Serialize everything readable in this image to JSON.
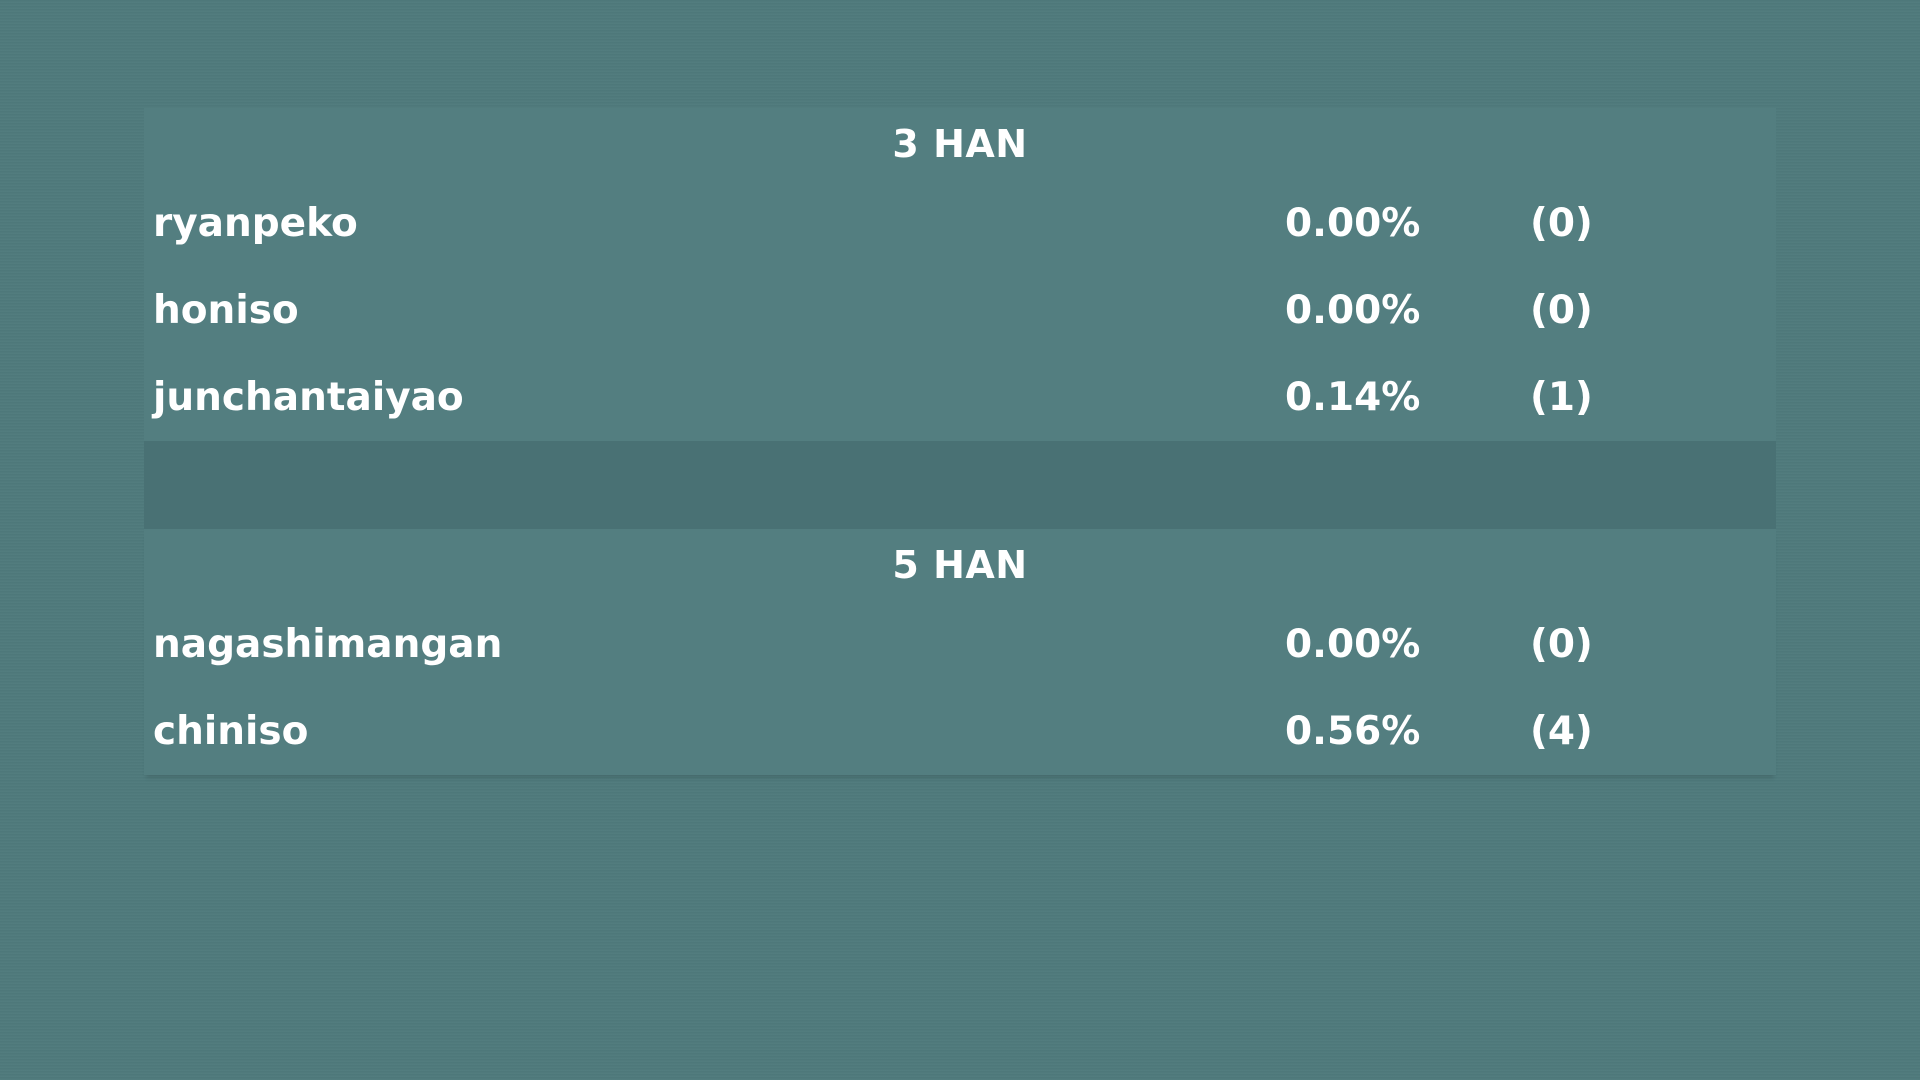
{
  "sections": [
    {
      "title": "3 HAN",
      "rows": [
        {
          "name": "ryanpeko",
          "percent": "0.00%",
          "count": "(0)"
        },
        {
          "name": "honiso",
          "percent": "0.00%",
          "count": "(0)"
        },
        {
          "name": "junchantaiyao",
          "percent": "0.14%",
          "count": "(1)"
        }
      ]
    },
    {
      "title": "5 HAN",
      "rows": [
        {
          "name": "nagashimangan",
          "percent": "0.00%",
          "count": "(0)"
        },
        {
          "name": "chiniso",
          "percent": "0.56%",
          "count": "(4)"
        }
      ]
    }
  ],
  "colors": {
    "background": "#4f7a7c",
    "panel": "#537e80",
    "gap": "#497174",
    "text": "#ffffff"
  }
}
